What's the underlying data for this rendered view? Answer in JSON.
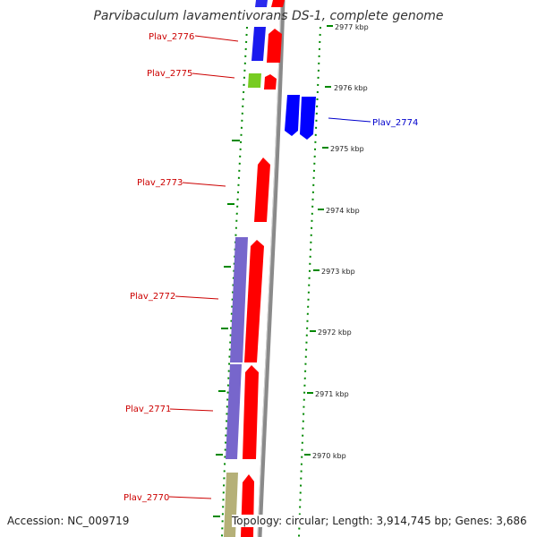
{
  "title": "Parvibaculum lavamentivorans DS-1, complete genome",
  "accession": "Accession: NC_009719",
  "topology": "Topology: circular; Length: 3,914,745 bp; Genes: 3,686",
  "colors": {
    "backbone": "#8a8a8a",
    "cds_forward": "#ff0000",
    "cds_reverse": "#0000ff",
    "cog_purple": "#7766cc",
    "cog_olive": "#b5b078",
    "cog_green": "#77cc22",
    "tick_green": "#008800",
    "label_red": "#cc0000",
    "label_blue": "#0000cc"
  },
  "kbp_ticks": [
    "2977 kbp",
    "2976 kbp",
    "2975 kbp",
    "2974 kbp",
    "2973 kbp",
    "2972 kbp",
    "2971 kbp",
    "2970 kbp"
  ],
  "genes": [
    {
      "name": "Plav_2776",
      "side": "left",
      "color": "red"
    },
    {
      "name": "Plav_2775",
      "side": "left",
      "color": "red"
    },
    {
      "name": "Plav_2774",
      "side": "right",
      "color": "blue"
    },
    {
      "name": "Plav_2773",
      "side": "left",
      "color": "red"
    },
    {
      "name": "Plav_2772",
      "side": "left",
      "color": "red"
    },
    {
      "name": "Plav_2771",
      "side": "left",
      "color": "red"
    },
    {
      "name": "Plav_2770",
      "side": "left",
      "color": "red"
    }
  ]
}
